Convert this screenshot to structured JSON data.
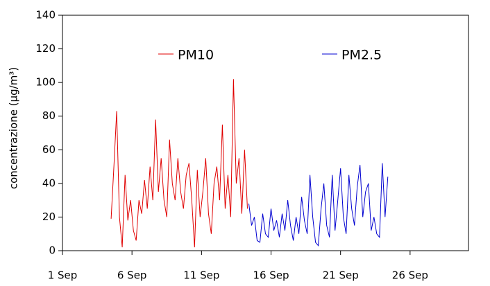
{
  "chart_data": {
    "type": "line",
    "ylabel": "concentrazione (µg/m³)",
    "xlim": [
      1,
      30.2
    ],
    "ylim": [
      0,
      140
    ],
    "xticks": [
      {
        "value": 1,
        "label": "1 Sep"
      },
      {
        "value": 6,
        "label": "6 Sep"
      },
      {
        "value": 11,
        "label": "11 Sep"
      },
      {
        "value": 16,
        "label": "16 Sep"
      },
      {
        "value": 21,
        "label": "21 Sep"
      },
      {
        "value": 26,
        "label": "26 Sep"
      }
    ],
    "yticks": [
      0,
      20,
      40,
      60,
      80,
      100,
      120,
      140
    ],
    "legend": "top",
    "series": [
      {
        "name": "PM10",
        "color": "#e00000",
        "x": [
          4.5,
          4.7,
          4.9,
          5.1,
          5.3,
          5.5,
          5.7,
          5.9,
          6.1,
          6.3,
          6.5,
          6.7,
          6.9,
          7.1,
          7.3,
          7.5,
          7.7,
          7.9,
          8.1,
          8.3,
          8.5,
          8.7,
          8.9,
          9.1,
          9.3,
          9.5,
          9.7,
          9.9,
          10.1,
          10.3,
          10.5,
          10.7,
          10.9,
          11.1,
          11.3,
          11.5,
          11.7,
          11.9,
          12.1,
          12.3,
          12.5,
          12.7,
          12.9,
          13.1,
          13.3,
          13.5,
          13.7,
          13.9,
          14.1,
          14.3
        ],
        "values": [
          19,
          50,
          83,
          20,
          2,
          45,
          18,
          30,
          12,
          6,
          30,
          22,
          42,
          25,
          50,
          30,
          78,
          35,
          55,
          30,
          20,
          66,
          40,
          30,
          55,
          35,
          25,
          45,
          52,
          30,
          2,
          48,
          20,
          35,
          55,
          22,
          10,
          40,
          50,
          30,
          75,
          25,
          45,
          20,
          102,
          40,
          55,
          22,
          60,
          25
        ]
      },
      {
        "name": "PM2.5",
        "color": "#0000d0",
        "x": [
          14.4,
          14.6,
          14.8,
          15.0,
          15.2,
          15.4,
          15.6,
          15.8,
          16.0,
          16.2,
          16.4,
          16.6,
          16.8,
          17.0,
          17.2,
          17.4,
          17.6,
          17.8,
          18.0,
          18.2,
          18.4,
          18.6,
          18.8,
          19.0,
          19.2,
          19.4,
          19.6,
          19.8,
          20.0,
          20.2,
          20.4,
          20.6,
          20.8,
          21.0,
          21.2,
          21.4,
          21.6,
          21.8,
          22.0,
          22.2,
          22.4,
          22.6,
          22.8,
          23.0,
          23.2,
          23.4,
          23.6,
          23.8,
          24.0,
          24.2,
          24.4
        ],
        "values": [
          28,
          15,
          20,
          6,
          5,
          22,
          10,
          8,
          25,
          12,
          18,
          8,
          22,
          12,
          30,
          15,
          6,
          20,
          10,
          32,
          18,
          10,
          45,
          20,
          5,
          3,
          25,
          40,
          15,
          8,
          45,
          12,
          30,
          49,
          20,
          10,
          45,
          25,
          15,
          38,
          51,
          20,
          35,
          40,
          12,
          20,
          10,
          8,
          52,
          20,
          44
        ]
      }
    ]
  }
}
